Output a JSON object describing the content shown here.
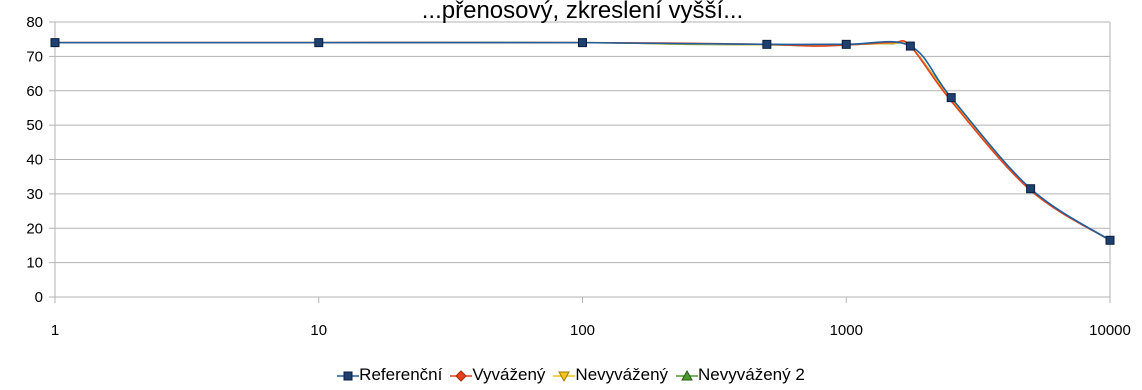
{
  "chart_data": {
    "type": "line",
    "title": "...přenosový, zkreslení vyšší...",
    "x_scale": "log",
    "xlim": [
      1,
      10000
    ],
    "ylim": [
      0,
      80
    ],
    "y_ticks": [
      0,
      10,
      20,
      30,
      40,
      50,
      60,
      70,
      80
    ],
    "x_ticks": [
      1,
      10,
      100,
      1000,
      10000
    ],
    "x_tick_labels": [
      "1",
      "10",
      "100",
      "1000",
      "10000"
    ],
    "grid": true,
    "legend_position": "bottom",
    "series": [
      {
        "name": "Referenční",
        "color": "#1f5f9f",
        "marker": "square",
        "x": [
          1,
          10,
          100,
          500,
          1000,
          1750,
          2500,
          5000,
          10000
        ],
        "y": [
          74,
          74,
          74,
          73.5,
          73.5,
          73,
          58,
          31.5,
          16.5
        ]
      },
      {
        "name": "Vyvážený",
        "color": "#e8401a",
        "marker": "diamond",
        "x": [
          1,
          10,
          100,
          250,
          500,
          750,
          1000,
          1500,
          1750,
          2500,
          5000,
          10000
        ],
        "y": [
          74,
          74,
          74,
          73.8,
          73.5,
          73.0,
          73.3,
          74.0,
          73.0,
          57,
          31,
          16.5
        ]
      },
      {
        "name": "Nevyvážený",
        "color": "#f2c21d",
        "marker": "triangle-down",
        "x": [
          1,
          10,
          100,
          250,
          500,
          750,
          1000,
          1500,
          1750,
          2500,
          5000,
          10000
        ],
        "y": [
          74,
          74,
          74,
          73.6,
          73.4,
          73.2,
          73.4,
          73.8,
          73,
          57.5,
          31.2,
          16.5
        ]
      },
      {
        "name": "Nevyvážený 2",
        "color": "#4a9a2c",
        "marker": "triangle-up",
        "x": [
          1,
          10,
          100,
          250,
          500,
          750,
          1000,
          1500,
          1750,
          2500,
          5000,
          10000
        ],
        "y": [
          74,
          74,
          74,
          73.5,
          73.4,
          73.1,
          73.4,
          73.7,
          73,
          57.8,
          31.3,
          16.5
        ]
      }
    ]
  }
}
